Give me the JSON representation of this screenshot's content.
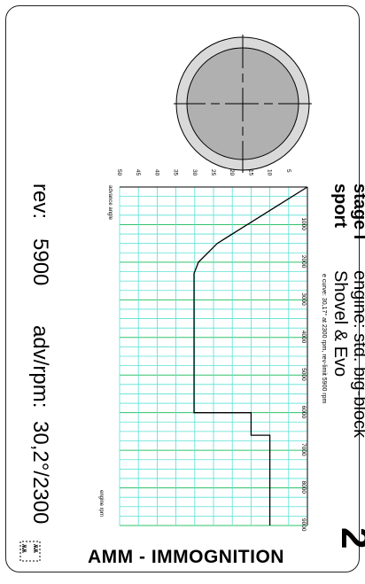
{
  "card": {
    "stage": "stage I",
    "tune": "sport",
    "engine_line1": "engine: std. big-block",
    "engine_line2": "Shovel & Evo",
    "curve_note": "e curve: 30,17° at 2300 rpm, rev-limit 5900 rpm",
    "model_number": "2",
    "rev_label": "rev:",
    "rev_value": "5900",
    "adv_label": "adv/rpm:",
    "adv_value": "30,2°/2300",
    "brand": "AMM - IMMOGNITION"
  },
  "chart_data": {
    "type": "line",
    "title": "",
    "xlabel": "engine rpm",
    "ylabel": "advance angle",
    "xlim": [
      0,
      9000
    ],
    "ylim": [
      0,
      50
    ],
    "x_ticks": [
      1000,
      2000,
      3000,
      4000,
      5000,
      6000,
      7000,
      8000,
      9000
    ],
    "y_ticks": [
      5,
      10,
      15,
      20,
      25,
      30,
      35,
      40,
      45,
      50
    ],
    "grid": true,
    "series": [
      {
        "name": "",
        "x": [
          0,
          500,
          1000,
          1500,
          2000,
          2300,
          6000,
          6000,
          6600,
          6600,
          9000
        ],
        "y": [
          0,
          8,
          16,
          24,
          29,
          30.2,
          30.2,
          15,
          15,
          10,
          10
        ]
      }
    ]
  }
}
